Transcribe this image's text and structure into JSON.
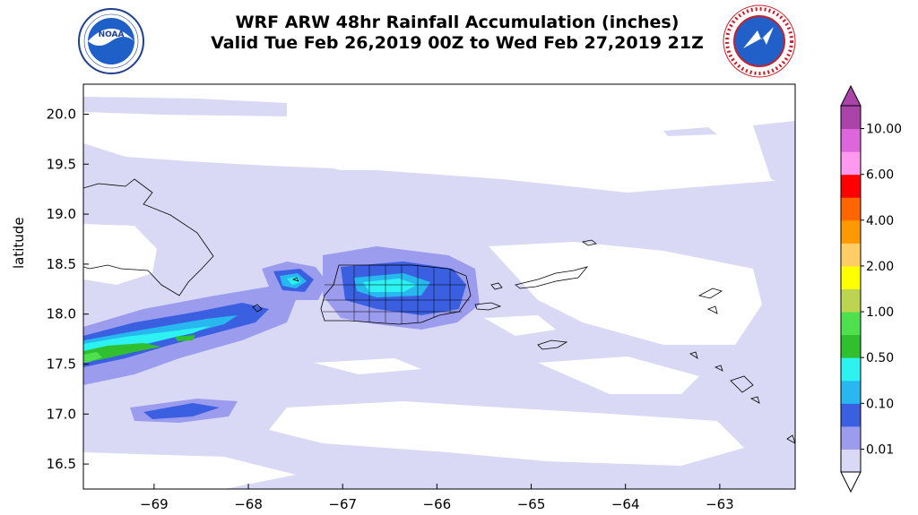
{
  "header": {
    "title_line1": "WRF ARW 48hr Rainfall Accumulation (inches)",
    "title_line2": "Valid Tue Feb 26,2019 00Z to Wed Feb 27,2019 21Z"
  },
  "logos": {
    "left": {
      "icon": "noaa-logo",
      "text": "NOAA"
    },
    "right": {
      "icon": "national-weather-service-logo"
    }
  },
  "map": {
    "ylabel": "latitude",
    "xlim": [
      -69.75,
      -62.2
    ],
    "ylim": [
      16.25,
      20.3
    ],
    "x_ticks": [
      -69,
      -68,
      -67,
      -66,
      -65,
      -64,
      -63
    ],
    "x_tick_labels": [
      "−69",
      "−68",
      "−67",
      "−66",
      "−65",
      "−64",
      "−63"
    ],
    "y_ticks": [
      16.5,
      17.0,
      17.5,
      18.0,
      18.5,
      19.0,
      19.5,
      20.0
    ],
    "y_tick_labels": [
      "16.5",
      "17.0",
      "17.5",
      "18.0",
      "18.5",
      "19.0",
      "19.5",
      "20.0"
    ]
  },
  "colorbar": {
    "levels": [
      "0.01",
      "0.10",
      "0.50",
      "1.00",
      "2.00",
      "4.00",
      "6.00",
      "10.00"
    ],
    "colors": [
      "#d9d9f5",
      "#9c9cee",
      "#3a5fe0",
      "#28b8ef",
      "#2df2f2",
      "#2fbf2f",
      "#4ee04e",
      "#bcd44f",
      "#ffff00",
      "#ffcc66",
      "#ff9900",
      "#ff6600",
      "#ff0000",
      "#ff99ee",
      "#dd66dd",
      "#aa44aa"
    ],
    "over_color": "#aa44aa",
    "under_color": "#ffffff"
  },
  "colors": {
    "light": "#d9d9f5",
    "light2": "#b9b9f2",
    "medium": "#9c9cee",
    "blue": "#3a5fe0",
    "cyan_blue": "#28b8ef",
    "cyan": "#2df2f2",
    "green": "#2fbf2f",
    "light_green": "#4ee04e"
  }
}
